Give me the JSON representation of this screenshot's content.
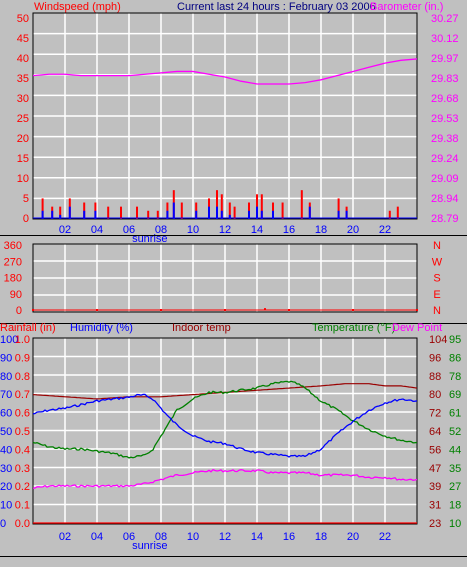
{
  "colors": {
    "wind": "#ff0000",
    "gust_bar": "#ff0000",
    "avg_bar": "#0000ff",
    "barometer": "#ff00ff",
    "humidity": "#0000ff",
    "indoor": "#990000",
    "temperature": "#008000",
    "dewpoint": "#ff00ff",
    "rainfall": "#ff0000",
    "title": "#000080",
    "grid": "#ffffff",
    "plot_bg": "#c0c0c0",
    "frame": "#000000",
    "sunrise": "#0000ff"
  },
  "chart_data": [
    {
      "type": "bar+line",
      "title": "Current last 24 hours : February 03 2006",
      "left_label": "Windspeed (mph)",
      "right_label": "Barometer (in.)",
      "x_ticks": [
        "02",
        "04",
        "06",
        "08",
        "10",
        "12",
        "14",
        "16",
        "18",
        "20",
        "22"
      ],
      "x_annotation": "sunrise",
      "x_annotation_hour": 7.3,
      "left_ticks": [
        "50",
        "45",
        "40",
        "35",
        "30",
        "25",
        "20",
        "15",
        "10",
        "5",
        "0"
      ],
      "right_ticks": [
        "30.27",
        "30.12",
        "29.97",
        "29.83",
        "29.68",
        "29.53",
        "29.38",
        "29.24",
        "29.09",
        "28.94",
        "28.79"
      ],
      "ylim_left": [
        0,
        50
      ],
      "ylim_right": [
        28.79,
        30.27
      ],
      "series": [
        {
          "name": "Barometer",
          "axis": "right",
          "kind": "line",
          "x": [
            0,
            1,
            2,
            3,
            4,
            5,
            6,
            7,
            8,
            9,
            10,
            11,
            12,
            13,
            14,
            15,
            16,
            17,
            18,
            19,
            20,
            21,
            22,
            23,
            24
          ],
          "y": [
            29.82,
            29.83,
            29.83,
            29.82,
            29.82,
            29.82,
            29.82,
            29.83,
            29.84,
            29.85,
            29.85,
            29.83,
            29.81,
            29.78,
            29.76,
            29.76,
            29.76,
            29.77,
            29.79,
            29.82,
            29.85,
            29.88,
            29.91,
            29.93,
            29.94
          ]
        },
        {
          "name": "Gust",
          "axis": "left",
          "kind": "bar",
          "x": [
            0.6,
            1.2,
            1.7,
            2.3,
            3.2,
            3.9,
            4.7,
            5.5,
            6.5,
            7.2,
            7.8,
            8.4,
            8.8,
            9.3,
            10.2,
            11.0,
            11.5,
            11.8,
            12.3,
            12.6,
            13.5,
            14.0,
            14.3,
            15.0,
            15.6,
            16.8,
            17.3,
            19.1,
            19.6,
            22.3,
            22.8
          ],
          "y": [
            5,
            3,
            3,
            5,
            4,
            4,
            3,
            3,
            3,
            2,
            2,
            4,
            7,
            4,
            4,
            5,
            7,
            6,
            4,
            3,
            4,
            6,
            6,
            4,
            4,
            7,
            4,
            5,
            3,
            2,
            3
          ]
        },
        {
          "name": "Average",
          "axis": "left",
          "kind": "bar",
          "x": [
            0.6,
            1.2,
            1.7,
            2.3,
            3.2,
            3.9,
            8.4,
            8.8,
            10.2,
            11.0,
            11.5,
            11.8,
            12.3,
            13.5,
            14.0,
            14.3,
            15.0,
            17.3,
            19.1,
            19.6
          ],
          "y": [
            2,
            2,
            1,
            3,
            2,
            2,
            2,
            4,
            2,
            3,
            3,
            2,
            1,
            2,
            3,
            2,
            2,
            3,
            2,
            2
          ]
        }
      ]
    },
    {
      "type": "scatter",
      "title": "",
      "left_ticks": [
        "360",
        "270",
        "180",
        "90",
        "0"
      ],
      "right_ticks": [
        "N",
        "W",
        "S",
        "E",
        "N"
      ],
      "ylim": [
        0,
        360
      ],
      "series": [
        {
          "name": "Wind direction",
          "x": [
            0,
            4,
            8,
            12,
            14.5,
            16,
            20,
            24
          ],
          "y": [
            0,
            0,
            0,
            0,
            5,
            0,
            0,
            0
          ]
        }
      ]
    },
    {
      "type": "line",
      "labels": [
        "Rainfall (in)",
        "Humidity (%)",
        "Indoor temp",
        "Temperature (°F)",
        "Dew Point"
      ],
      "x_ticks": [
        "02",
        "04",
        "06",
        "08",
        "10",
        "12",
        "14",
        "16",
        "18",
        "20",
        "22"
      ],
      "x_annotation": "sunrise",
      "x_annotation_hour": 7.3,
      "rain_ticks": [
        "1.0",
        "0.9",
        "0.8",
        "0.7",
        "0.6",
        "0.5",
        "0.4",
        "0.3",
        "0.2",
        "0.1",
        "0.0"
      ],
      "humidity_ticks": [
        "100",
        "90",
        "80",
        "70",
        "60",
        "50",
        "40",
        "30",
        "20",
        "10",
        "0"
      ],
      "temp_ticks_right1": [
        "104",
        "96",
        "88",
        "80",
        "72",
        "64",
        "56",
        "47",
        "39",
        "31",
        "23"
      ],
      "temp_ticks_right2": [
        "95",
        "86",
        "78",
        "69",
        "61",
        "52",
        "44",
        "35",
        "27",
        "18",
        "10"
      ],
      "ylim_humidity": [
        0,
        100
      ],
      "ylim_temp": [
        10,
        95
      ],
      "ylim_rain": [
        0,
        1
      ],
      "series": [
        {
          "name": "Humidity",
          "axis": "humidity",
          "x": [
            0,
            1,
            2,
            3,
            4,
            5,
            6,
            6.5,
            7,
            7.5,
            8,
            8.5,
            9,
            10,
            11,
            12,
            13,
            14,
            15,
            16,
            17,
            18,
            19,
            20,
            21,
            22,
            23,
            24
          ],
          "y": [
            59,
            61,
            62,
            64,
            66,
            67,
            68,
            69,
            69,
            67,
            62,
            57,
            53,
            47,
            44,
            43,
            40,
            38,
            37,
            36,
            36,
            40,
            48,
            55,
            61,
            65,
            67,
            66
          ]
        },
        {
          "name": "Indoor temp",
          "axis": "temp",
          "x": [
            0,
            2,
            4,
            6,
            8,
            10,
            12,
            14,
            16,
            18,
            19.5,
            21,
            22,
            23,
            24
          ],
          "y": [
            69,
            68,
            67,
            68,
            68,
            69,
            70,
            71,
            72,
            73,
            74,
            74,
            73,
            73,
            72
          ]
        },
        {
          "name": "Temperature",
          "axis": "temp",
          "x": [
            0,
            0.5,
            1,
            2,
            3,
            4,
            5,
            6,
            7,
            7.5,
            8,
            8.5,
            9,
            10,
            11,
            12,
            13,
            14,
            15,
            16,
            16.5,
            17,
            18,
            19,
            20,
            21,
            22,
            23,
            24
          ],
          "y": [
            47,
            46,
            45,
            44,
            44,
            43,
            42,
            40,
            41,
            44,
            50,
            56,
            62,
            67,
            70,
            70,
            71,
            72,
            74,
            75,
            74,
            72,
            66,
            62,
            57,
            53,
            50,
            48,
            47
          ]
        },
        {
          "name": "Dew Point",
          "axis": "temp",
          "x": [
            0,
            1,
            2,
            3,
            4,
            5,
            6,
            7,
            8,
            9,
            10,
            11,
            12,
            13,
            14,
            15,
            16,
            17,
            18,
            19,
            20,
            21,
            22,
            23,
            24
          ],
          "y": [
            26,
            27,
            27,
            27,
            27,
            27,
            27,
            28,
            30,
            32,
            33,
            34,
            34,
            34,
            34,
            33,
            33,
            33,
            32,
            32,
            32,
            31,
            31,
            30,
            30
          ]
        },
        {
          "name": "Rainfall",
          "axis": "rain",
          "x": [
            0,
            24
          ],
          "y": [
            0,
            0
          ]
        }
      ]
    }
  ]
}
